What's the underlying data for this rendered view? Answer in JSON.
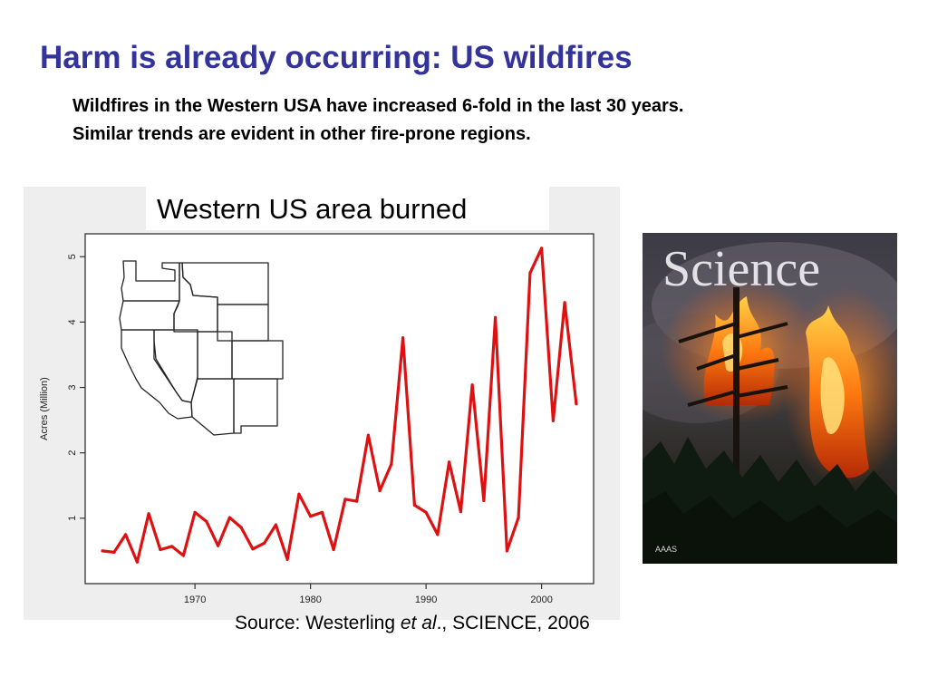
{
  "slide": {
    "title": "Harm is already occurring: US wildfires",
    "subtitle_lines": [
      "Wildfires in the Western USA have increased 6-fold in the last 30 years.",
      "Similar trends are evident in other fire-prone regions."
    ],
    "source": {
      "prefix": "Source: Westerling ",
      "italic": "et al",
      "suffix": "., SCIENCE, 2006"
    }
  },
  "cover": {
    "masthead": "Science",
    "publisher_mark": "AAAS"
  },
  "chart_data": {
    "type": "line",
    "title": "Western US area burned",
    "xlabel": "",
    "ylabel": "Acres (Million)",
    "xlim": [
      1960.5,
      2004.5
    ],
    "ylim": [
      0,
      5.35
    ],
    "xticks": [
      1970,
      1980,
      1990,
      2000
    ],
    "yticks": [
      1,
      2,
      3,
      4,
      5
    ],
    "grid": false,
    "line_color": "#dd1111",
    "series": [
      {
        "x": [
          1962,
          1963,
          1964,
          1965,
          1966,
          1967,
          1968,
          1969,
          1970,
          1971,
          1972,
          1973,
          1974,
          1975,
          1976,
          1977,
          1978,
          1979,
          1980,
          1981,
          1982,
          1983,
          1984,
          1985,
          1986,
          1987,
          1988,
          1989,
          1990,
          1991,
          1992,
          1993,
          1994,
          1995,
          1996,
          1997,
          1998,
          1999,
          2000,
          2001,
          2002,
          2003
        ],
        "values": [
          0.5,
          0.48,
          0.75,
          0.33,
          1.07,
          0.52,
          0.57,
          0.43,
          1.09,
          0.95,
          0.58,
          1.01,
          0.86,
          0.53,
          0.62,
          0.9,
          0.37,
          1.37,
          1.03,
          1.09,
          0.52,
          1.29,
          1.26,
          2.27,
          1.42,
          1.83,
          3.76,
          1.2,
          1.09,
          0.75,
          1.86,
          1.1,
          3.04,
          1.27,
          4.07,
          0.5,
          1.01,
          4.75,
          5.13,
          2.49,
          4.3,
          2.75
        ]
      }
    ]
  }
}
